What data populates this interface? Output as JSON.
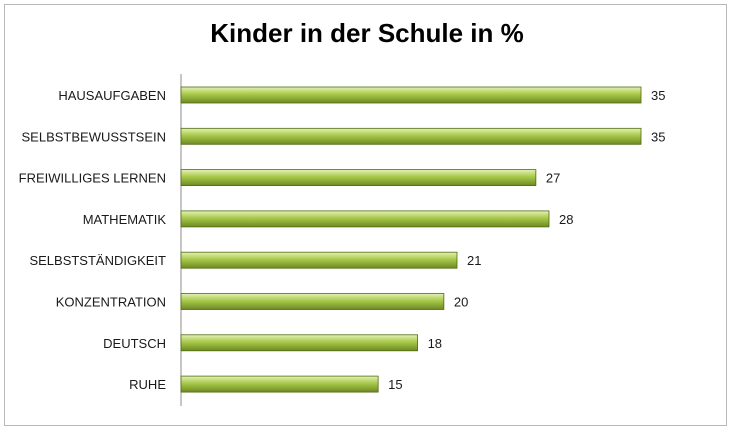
{
  "chart_data": {
    "type": "bar",
    "orientation": "horizontal",
    "title": "Kinder in der Schule in %",
    "categories": [
      "HAUSAUFGABEN",
      "SELBSTBEWUSSTSEIN",
      "FREIWILLIGES LERNEN",
      "MATHEMATIK",
      "SELBSTSTÄNDIGKEIT",
      "KONZENTRATION",
      "DEUTSCH",
      "RUHE"
    ],
    "values": [
      35,
      35,
      27,
      28,
      21,
      20,
      18,
      15
    ],
    "value_labels": [
      "35",
      "35",
      "27",
      "28",
      "21",
      "20",
      "18",
      "15"
    ],
    "xlim": [
      0,
      40
    ],
    "grid": false,
    "legend": "none",
    "bar_color": "#a8c84a",
    "bar_color_light": "#e4f2b4",
    "bar_color_dark": "#6d8a22",
    "bar_edge": "#4f6a12"
  }
}
